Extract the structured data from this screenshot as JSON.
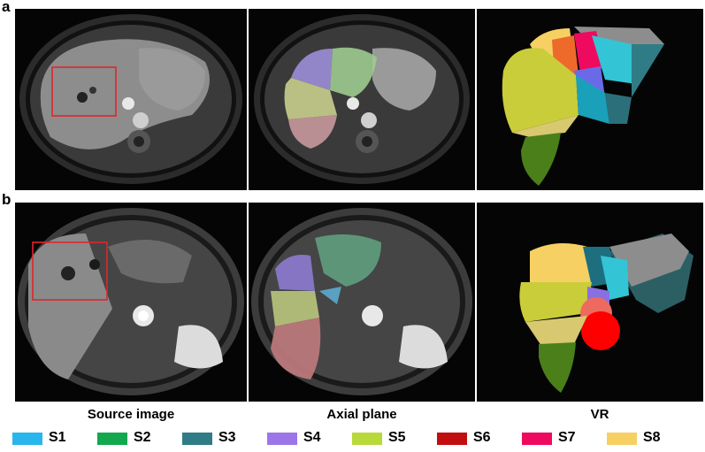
{
  "panels": {
    "a": {
      "letter": "a"
    },
    "b": {
      "letter": "b"
    }
  },
  "columns": {
    "source": "Source image",
    "axial": "Axial  plane",
    "vr": "VR"
  },
  "legend": [
    {
      "label": "S1",
      "color": "#29b6ec"
    },
    {
      "label": "S2",
      "color": "#12a84e"
    },
    {
      "label": "S3",
      "color": "#2f7c86"
    },
    {
      "label": "S4",
      "color": "#9c76e8"
    },
    {
      "label": "S5",
      "color": "#b9d93a"
    },
    {
      "label": "S6",
      "color": "#c10f10"
    },
    {
      "label": "S7",
      "color": "#ee0a5e"
    },
    {
      "label": "S8",
      "color": "#f6d062"
    }
  ]
}
